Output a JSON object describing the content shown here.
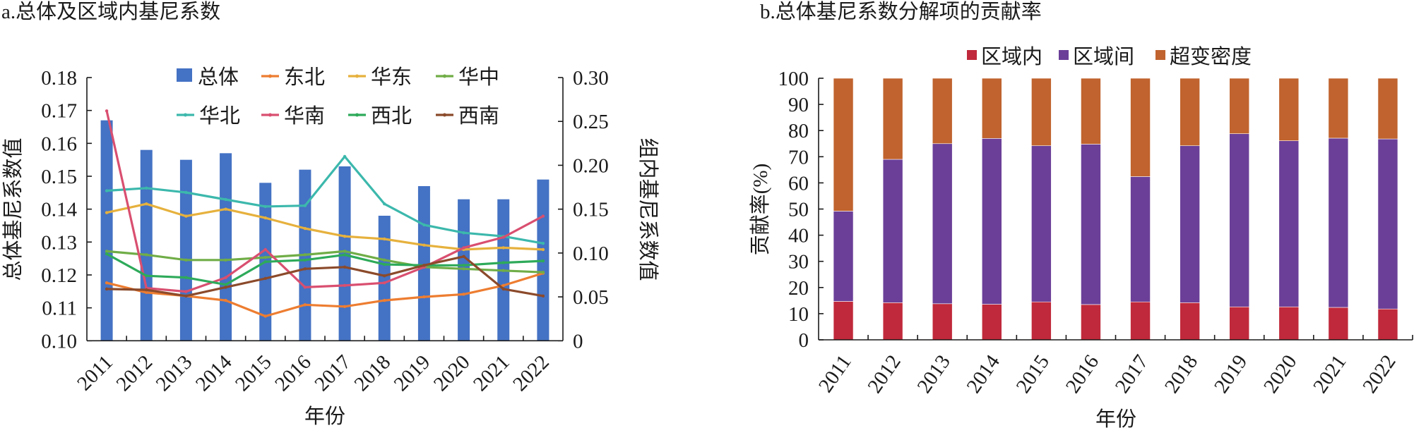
{
  "chart_data": [
    {
      "id": "panel-a",
      "type": "bar+line",
      "title": "a.总体及区域内基尼系数",
      "xlabel": "年份",
      "ylabel": "总体基尼系数值",
      "y2label": "组内基尼系数值",
      "categories": [
        "2011",
        "2012",
        "2013",
        "2014",
        "2015",
        "2016",
        "2017",
        "2018",
        "2019",
        "2020",
        "2021",
        "2022"
      ],
      "ylim": [
        0.1,
        0.18
      ],
      "yticks": [
        "0.10",
        "0.11",
        "0.12",
        "0.13",
        "0.14",
        "0.15",
        "0.16",
        "0.17",
        "0.18"
      ],
      "y2lim": [
        0,
        0.3
      ],
      "y2ticks": [
        "0",
        "0.05",
        "0.10",
        "0.15",
        "0.20",
        "0.25",
        "0.30"
      ],
      "grid": false,
      "legend_position": "top-center",
      "bar_series": {
        "name": "总体",
        "axis": "left",
        "color": "#4472c4",
        "values": [
          0.167,
          0.158,
          0.155,
          0.157,
          0.148,
          0.152,
          0.153,
          0.138,
          0.147,
          0.143,
          0.143,
          0.149
        ]
      },
      "line_series": [
        {
          "name": "东北",
          "axis": "right",
          "color": "#ed7d31",
          "values": [
            0.066,
            0.055,
            0.051,
            0.046,
            0.028,
            0.041,
            0.039,
            0.046,
            0.05,
            0.053,
            0.063,
            0.077
          ]
        },
        {
          "name": "华东",
          "axis": "right",
          "color": "#e6b13d",
          "values": [
            0.146,
            0.156,
            0.142,
            0.15,
            0.14,
            0.128,
            0.119,
            0.116,
            0.109,
            0.104,
            0.106,
            0.104
          ]
        },
        {
          "name": "华中",
          "axis": "right",
          "color": "#70ad47",
          "values": [
            0.102,
            0.098,
            0.092,
            0.092,
            0.095,
            0.098,
            0.102,
            0.092,
            0.084,
            0.082,
            0.08,
            0.078
          ]
        },
        {
          "name": "华北",
          "axis": "right",
          "color": "#3cb8ac",
          "values": [
            0.171,
            0.174,
            0.169,
            0.161,
            0.153,
            0.154,
            0.21,
            0.156,
            0.132,
            0.123,
            0.119,
            0.111
          ]
        },
        {
          "name": "华南",
          "axis": "right",
          "color": "#d94f70",
          "values": [
            0.262,
            0.06,
            0.056,
            0.072,
            0.104,
            0.061,
            0.063,
            0.066,
            0.084,
            0.106,
            0.118,
            0.142
          ]
        },
        {
          "name": "西北",
          "axis": "right",
          "color": "#2eaa5a",
          "values": [
            0.099,
            0.074,
            0.072,
            0.064,
            0.09,
            0.092,
            0.098,
            0.087,
            0.086,
            0.086,
            0.089,
            0.091
          ]
        },
        {
          "name": "西南",
          "axis": "right",
          "color": "#8b4a2b",
          "values": [
            0.059,
            0.058,
            0.051,
            0.061,
            0.071,
            0.082,
            0.084,
            0.074,
            0.086,
            0.096,
            0.059,
            0.051
          ]
        }
      ],
      "legend": [
        "总体",
        "东北",
        "华东",
        "华中",
        "华北",
        "华南",
        "西北",
        "西南"
      ]
    },
    {
      "id": "panel-b",
      "type": "bar",
      "stacked": true,
      "title": "b.总体基尼系数分解项的贡献率",
      "xlabel": "年份",
      "ylabel": "贡献率(%)",
      "categories": [
        "2011",
        "2012",
        "2013",
        "2014",
        "2015",
        "2016",
        "2017",
        "2018",
        "2019",
        "2020",
        "2021",
        "2022"
      ],
      "ylim": [
        0,
        100
      ],
      "yticks": [
        "0",
        "10",
        "20",
        "30",
        "40",
        "50",
        "60",
        "70",
        "80",
        "90",
        "100"
      ],
      "grid": false,
      "legend_position": "top-center",
      "series": [
        {
          "name": "区域内",
          "color": "#c0293b",
          "values": [
            14.7,
            14.2,
            13.8,
            13.6,
            14.5,
            13.5,
            14.5,
            14.2,
            12.6,
            12.6,
            12.4,
            11.8
          ]
        },
        {
          "name": "区域间",
          "color": "#6b3f98",
          "values": [
            34.5,
            54.8,
            61.2,
            63.4,
            59.7,
            61.3,
            47.9,
            60.0,
            66.2,
            63.5,
            64.7,
            65.0
          ]
        },
        {
          "name": "超变密度",
          "color": "#c0632e",
          "values": [
            50.8,
            31.0,
            25.0,
            23.0,
            25.8,
            25.2,
            37.6,
            25.8,
            21.2,
            23.9,
            22.9,
            23.2
          ]
        }
      ],
      "cumulative_tops": {
        "区域内": [
          14.7,
          14.2,
          13.8,
          13.6,
          14.5,
          13.5,
          14.5,
          14.2,
          12.6,
          12.6,
          12.4,
          11.8
        ],
        "区域间": [
          49.2,
          69.0,
          75.0,
          77.0,
          74.2,
          74.8,
          62.4,
          74.2,
          78.8,
          76.1,
          77.1,
          76.8
        ]
      }
    }
  ]
}
